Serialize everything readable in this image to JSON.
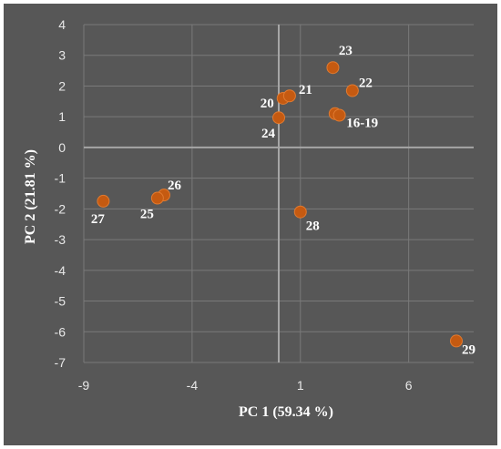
{
  "chart_data": {
    "type": "scatter",
    "title": "",
    "xlabel": "PC 1 (59.34 %)",
    "ylabel": "PC 2 (21.81 %)",
    "xlim": [
      -9,
      9
    ],
    "ylim": [
      -7,
      4
    ],
    "xticks": [
      -9,
      -4,
      1,
      6
    ],
    "xtick_labels": [
      "-9",
      "-4",
      "1",
      "6"
    ],
    "yticks": [
      4,
      3,
      2,
      1,
      0,
      -1,
      -2,
      -3,
      -4,
      -5,
      -6,
      -7
    ],
    "ytick_labels": [
      "4",
      "3",
      "2",
      "1",
      "0",
      "-1",
      "-2",
      "-3",
      "-4",
      "-5",
      "-6",
      "-7"
    ],
    "grid": true,
    "colors": {
      "background": "#575757",
      "plot": "#575757",
      "grid": "#7a7a7a",
      "zero_line": "#a6a6a6",
      "marker": "#c55a11",
      "marker_edge": "#e07a30",
      "text": "#ffffff"
    },
    "points": [
      {
        "x": 2.5,
        "y": 2.6
      },
      {
        "x": 3.4,
        "y": 1.85
      },
      {
        "x": 0.2,
        "y": 1.6
      },
      {
        "x": 0.5,
        "y": 1.68
      },
      {
        "x": 0.0,
        "y": 0.97
      },
      {
        "x": 2.6,
        "y": 1.1
      },
      {
        "x": 2.8,
        "y": 1.05
      },
      {
        "x": 1.0,
        "y": -2.1
      },
      {
        "x": -5.3,
        "y": -1.55
      },
      {
        "x": -5.6,
        "y": -1.65
      },
      {
        "x": -8.1,
        "y": -1.75
      },
      {
        "x": 8.2,
        "y": -6.3
      }
    ],
    "labels": [
      {
        "text": "23",
        "x": 2.6,
        "y": 2.6
      },
      {
        "text": "22",
        "x": 3.4,
        "y": 1.85
      },
      {
        "text": "20",
        "x": 0.2,
        "y": 1.6
      },
      {
        "text": "21",
        "x": 0.5,
        "y": 1.68
      },
      {
        "text": "24",
        "x": 0.0,
        "y": 0.97
      },
      {
        "text": "16-19",
        "x": 2.7,
        "y": 1.08
      },
      {
        "text": "28",
        "x": 1.0,
        "y": -2.1
      },
      {
        "text": "26",
        "x": -5.3,
        "y": -1.55
      },
      {
        "text": "25",
        "x": -5.6,
        "y": -1.65
      },
      {
        "text": "27",
        "x": -8.1,
        "y": -1.75
      },
      {
        "text": "29",
        "x": 8.2,
        "y": -6.3
      }
    ]
  }
}
